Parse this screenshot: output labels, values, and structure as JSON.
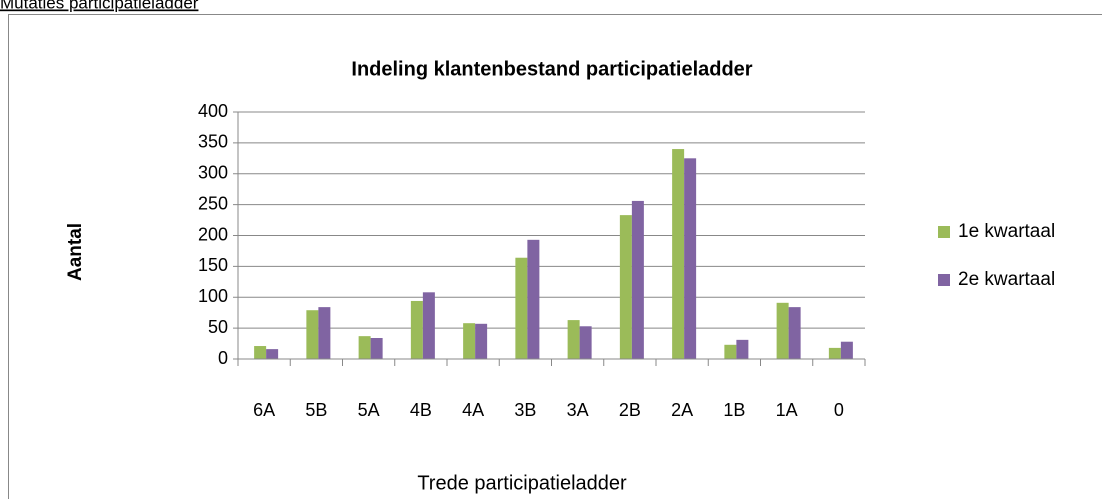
{
  "heading": "Mutaties participatieladder",
  "chart_data": {
    "type": "bar",
    "title": "Indeling klantenbestand participatieladder",
    "x_label": "Trede participatieladder",
    "y_label": "Aantal",
    "categories": [
      "6A",
      "5B",
      "5A",
      "4B",
      "4A",
      "3B",
      "3A",
      "2B",
      "2A",
      "1B",
      "1A",
      "0"
    ],
    "series": [
      {
        "name": "1e kwartaal",
        "color": "#9bbb59",
        "values": [
          21,
          79,
          37,
          94,
          58,
          164,
          63,
          233,
          340,
          23,
          91,
          18
        ]
      },
      {
        "name": "2e kwartaal",
        "color": "#8064a2",
        "values": [
          16,
          84,
          34,
          108,
          57,
          193,
          53,
          256,
          325,
          31,
          84,
          28
        ]
      }
    ],
    "ylim": [
      0,
      400
    ],
    "yticks": [
      0,
      50,
      100,
      150,
      200,
      250,
      300,
      350,
      400
    ],
    "grid": true,
    "legend": "right"
  }
}
